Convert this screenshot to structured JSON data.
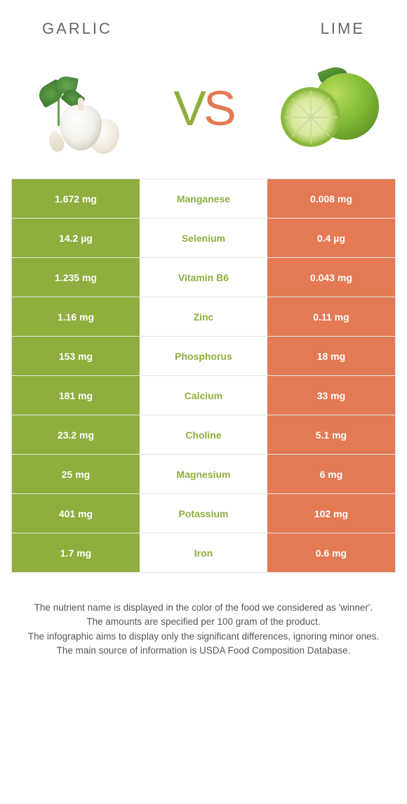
{
  "header": {
    "left_title": "GARLIC",
    "right_title": "LIME"
  },
  "vs": {
    "v": "V",
    "s": "S"
  },
  "colors": {
    "left_bg": "#8fae3e",
    "right_bg": "#e37a54",
    "winner_left": "#8fae3e",
    "winner_right": "#e37a54",
    "text_white": "#ffffff",
    "border": "#e5e5e5",
    "body_text": "#555555"
  },
  "table": {
    "rows": [
      {
        "left": "1.672 mg",
        "nutrient": "Manganese",
        "right": "0.008 mg",
        "winner": "left"
      },
      {
        "left": "14.2 µg",
        "nutrient": "Selenium",
        "right": "0.4 µg",
        "winner": "left"
      },
      {
        "left": "1.235 mg",
        "nutrient": "Vitamin B6",
        "right": "0.043 mg",
        "winner": "left"
      },
      {
        "left": "1.16 mg",
        "nutrient": "Zinc",
        "right": "0.11 mg",
        "winner": "left"
      },
      {
        "left": "153 mg",
        "nutrient": "Phosphorus",
        "right": "18 mg",
        "winner": "left"
      },
      {
        "left": "181 mg",
        "nutrient": "Calcium",
        "right": "33 mg",
        "winner": "left"
      },
      {
        "left": "23.2 mg",
        "nutrient": "Choline",
        "right": "5.1 mg",
        "winner": "left"
      },
      {
        "left": "25 mg",
        "nutrient": "Magnesium",
        "right": "6 mg",
        "winner": "left"
      },
      {
        "left": "401 mg",
        "nutrient": "Potassium",
        "right": "102 mg",
        "winner": "left"
      },
      {
        "left": "1.7 mg",
        "nutrient": "Iron",
        "right": "0.6 mg",
        "winner": "left"
      }
    ]
  },
  "footer": {
    "line1": "The nutrient name is displayed in the color of the food we considered as 'winner'.",
    "line2": "The amounts are specified per 100 gram of the product.",
    "line3": "The infographic aims to display only the significant differences, ignoring minor ones.",
    "line4": "The main source of information is USDA Food Composition Database."
  }
}
